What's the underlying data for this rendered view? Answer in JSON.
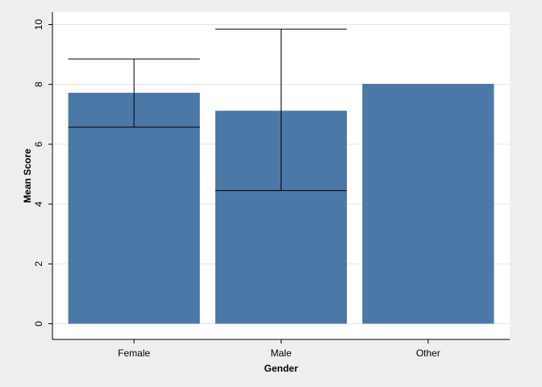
{
  "chart_data": {
    "type": "bar",
    "title": "",
    "xlabel": "Gender",
    "ylabel": "Mean Score",
    "categories": [
      "Female",
      "Male",
      "Other"
    ],
    "values": [
      7.72,
      7.12,
      8.02
    ],
    "error_bars": [
      {
        "low": 6.57,
        "high": 8.85
      },
      {
        "low": 4.45,
        "high": 9.85
      },
      null
    ],
    "ylim": [
      0,
      10.2
    ],
    "yticks": [
      0,
      2,
      4,
      6,
      8,
      10
    ],
    "ytick_labels": [
      "0",
      "2",
      "4",
      "6",
      "8",
      "10"
    ],
    "grid": true,
    "colors": {
      "bar": "#4c78a8",
      "background": "#eeeeee",
      "plot_background": "#ffffff",
      "grid": "#e6e6e6",
      "axis": "#000000",
      "error_bar": "#000000"
    }
  }
}
